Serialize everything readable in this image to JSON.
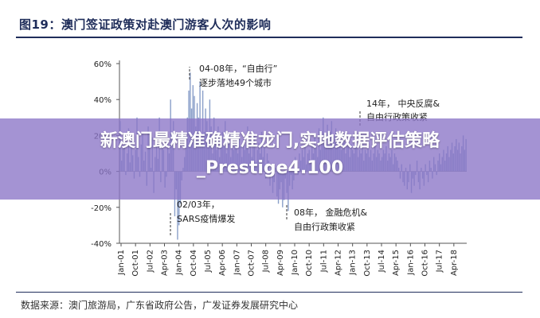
{
  "title": "图19：澳门签证政策对赴澳门游客人次的影响",
  "source": "数据来源：澳门旅游局，广东省政府公告，广发证券发展研究中心",
  "overlay": {
    "line1": "新澳门最精准确精准龙门,实地数据评估策略",
    "line2": "_Prestige4.100"
  },
  "chart_data": {
    "type": "bar",
    "ylim": [
      -40,
      60
    ],
    "yticks": [
      "60%",
      "40%",
      "20%",
      "0%",
      "-20%",
      "-40%"
    ],
    "ytick_values": [
      60,
      40,
      20,
      0,
      -20,
      -40
    ],
    "xticks": [
      "Jan-01",
      "Oct-01",
      "Jul-02",
      "Apr-03",
      "Jan-04",
      "Oct-04",
      "Jul-05",
      "Apr-06",
      "Jan-07",
      "Oct-07",
      "Jul-08",
      "Apr-09",
      "Jan-10",
      "Oct-10",
      "Jul-11",
      "Apr-12",
      "Jan-13",
      "Oct-13",
      "Jul-14",
      "Apr-15",
      "Jan-16",
      "Oct-16",
      "Jul-17",
      "Apr-18"
    ],
    "color": "#8a9fc9",
    "annotations": [
      {
        "line1": "04-08年，“自由行”",
        "line2": "逐步落地49个城市"
      },
      {
        "line1": "14年， 中央反腐&",
        "line2": "自由行政策收紧"
      },
      {
        "line1": "02/03年，",
        "line2": "SARS疫情爆发"
      },
      {
        "line1": "08年， 金融危机&",
        "line2": "自由行政策收紧"
      }
    ],
    "values": [
      28,
      6,
      14,
      20,
      -2,
      10,
      24,
      5,
      18,
      9,
      -4,
      12,
      30,
      8,
      -3,
      15,
      22,
      6,
      11,
      -8,
      25,
      14,
      2,
      19,
      -12,
      8,
      20,
      7,
      30,
      -6,
      15,
      12,
      -9,
      -3,
      18,
      10,
      40,
      22,
      28,
      -25,
      -10,
      -38,
      -30,
      -18,
      -5,
      2,
      8,
      15,
      30,
      45,
      55,
      35,
      48,
      42,
      25,
      38,
      30,
      50,
      18,
      45,
      22,
      35,
      28,
      15,
      40,
      25,
      10,
      30,
      20,
      12,
      25,
      8,
      18,
      22,
      14,
      28,
      10,
      20,
      16,
      8,
      22,
      12,
      15,
      18,
      10,
      20,
      14,
      8,
      18,
      12,
      15,
      25,
      10,
      18,
      8,
      14,
      20,
      5,
      12,
      16,
      10,
      22,
      8,
      14,
      -4,
      10,
      6,
      -8,
      4,
      -12,
      -6,
      2,
      -14,
      -18,
      -10,
      -6,
      -20,
      -16,
      -4,
      -12,
      -22,
      -8,
      -2,
      -10,
      -5,
      8,
      4,
      -2,
      10,
      6,
      12,
      8,
      15,
      4,
      10,
      12,
      6,
      16,
      10,
      20,
      14,
      8,
      24,
      12,
      18,
      30,
      20,
      15,
      26,
      18,
      22,
      28,
      16,
      20,
      24,
      14,
      18,
      22,
      12,
      16,
      20,
      10,
      14,
      18,
      8,
      15,
      12,
      10,
      16,
      14,
      8,
      12,
      10,
      16,
      6,
      12,
      10,
      14,
      8,
      12,
      6,
      10,
      14,
      8,
      12,
      10,
      6,
      8,
      12,
      10,
      14,
      6,
      10,
      8,
      12,
      4,
      10,
      8,
      6,
      2,
      -4,
      4,
      -6,
      -8,
      2,
      -10,
      -6,
      4,
      -12,
      -4,
      -8,
      -2,
      6,
      -6,
      -10,
      2,
      -4,
      -8,
      4,
      -2,
      -6,
      6,
      2,
      -4,
      8,
      4,
      -2,
      6,
      10,
      4,
      8,
      12,
      6,
      10,
      14,
      8,
      12,
      16,
      10,
      14,
      18,
      12,
      16,
      10,
      14,
      20,
      12,
      18
    ]
  }
}
